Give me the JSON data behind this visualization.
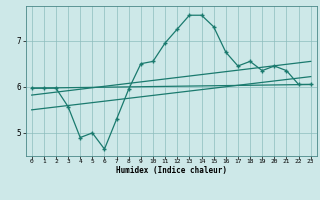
{
  "xlabel": "Humidex (Indice chaleur)",
  "bg_color": "#cde8e8",
  "line_color": "#1a7a6e",
  "x_ticks": [
    0,
    1,
    2,
    3,
    4,
    5,
    6,
    7,
    8,
    9,
    10,
    11,
    12,
    13,
    14,
    15,
    16,
    17,
    18,
    19,
    20,
    21,
    22,
    23
  ],
  "y_ticks": [
    5,
    6,
    7
  ],
  "ylim": [
    4.5,
    7.75
  ],
  "xlim": [
    -0.5,
    23.5
  ],
  "line1_x": [
    0,
    1,
    2,
    3,
    4,
    5,
    6,
    7,
    8,
    9,
    10,
    11,
    12,
    13,
    14,
    15,
    16,
    17,
    18,
    19,
    20,
    21,
    22,
    23
  ],
  "line1_y": [
    5.97,
    5.97,
    5.97,
    5.57,
    4.9,
    5.0,
    4.65,
    5.3,
    5.95,
    6.5,
    6.55,
    6.95,
    7.25,
    7.55,
    7.55,
    7.3,
    6.75,
    6.45,
    6.55,
    6.35,
    6.45,
    6.35,
    6.05,
    6.05
  ],
  "line2_x": [
    0,
    23
  ],
  "line2_y": [
    5.97,
    6.05
  ],
  "line3_x": [
    0,
    23
  ],
  "line3_y": [
    5.82,
    6.55
  ],
  "line4_x": [
    0,
    23
  ],
  "line4_y": [
    5.5,
    6.22
  ]
}
